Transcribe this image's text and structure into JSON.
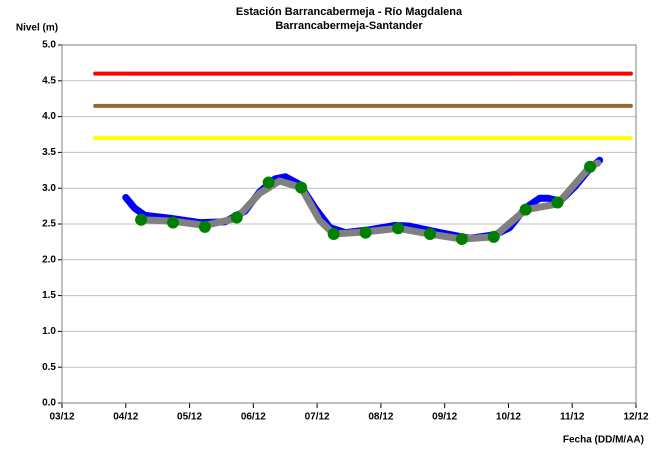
{
  "chart_data": {
    "type": "line",
    "title": "Estación Barrancabermeja - Río Magdalena",
    "subtitle": "Barrancabermeja-Santander",
    "y_label": "Nivel (m)",
    "x_label": "Fecha (DD/M/AA)",
    "xlim": [
      3,
      12
    ],
    "xticks": [
      {
        "value": 3,
        "label": "03/12"
      },
      {
        "value": 4,
        "label": "04/12"
      },
      {
        "value": 5,
        "label": "05/12"
      },
      {
        "value": 6,
        "label": "06/12"
      },
      {
        "value": 7,
        "label": "07/12"
      },
      {
        "value": 8,
        "label": "08/12"
      },
      {
        "value": 9,
        "label": "09/12"
      },
      {
        "value": 10,
        "label": "10/12"
      },
      {
        "value": 11,
        "label": "11/12"
      },
      {
        "value": 12,
        "label": "12/12"
      }
    ],
    "ylim": [
      0,
      5
    ],
    "yticks": [
      {
        "value": 0,
        "label": "0.0"
      },
      0.5,
      {
        "value": 1,
        "label": "1.0"
      },
      1.5,
      {
        "value": 2,
        "label": "2.0"
      },
      2.5,
      {
        "value": 3,
        "label": "3.0"
      },
      3.5,
      {
        "value": 4,
        "label": "4.0"
      },
      4.5,
      {
        "value": 5,
        "label": "5.0"
      }
    ],
    "grid": true,
    "series": [
      {
        "type": "line",
        "color": "#ff0000",
        "x": [
          3.52,
          11.92
        ],
        "values": [
          4.6,
          4.6
        ]
      },
      {
        "type": "line",
        "color": "#996633",
        "x": [
          3.52,
          11.92
        ],
        "values": [
          4.15,
          4.15
        ]
      },
      {
        "type": "line",
        "color": "#ffff00",
        "x": [
          3.52,
          11.92
        ],
        "values": [
          3.7,
          3.7
        ]
      },
      {
        "type": "line",
        "color": "#0000ff",
        "x": [
          4.0,
          4.14,
          4.3,
          4.69,
          5.16,
          5.55,
          5.87,
          6.1,
          6.34,
          6.5,
          6.73,
          6.97,
          7.2,
          7.44,
          7.83,
          8.22,
          8.45,
          8.92,
          9.39,
          9.79,
          10.02,
          10.26,
          10.49,
          10.62,
          10.81,
          11.04,
          11.28,
          11.43
        ],
        "values": [
          2.87,
          2.72,
          2.62,
          2.58,
          2.52,
          2.53,
          2.68,
          2.95,
          3.13,
          3.16,
          3.05,
          2.72,
          2.45,
          2.38,
          2.42,
          2.48,
          2.47,
          2.38,
          2.3,
          2.35,
          2.45,
          2.72,
          2.86,
          2.86,
          2.82,
          3.02,
          3.28,
          3.39
        ]
      },
      {
        "type": "line",
        "color": "#808080",
        "x": [
          4.24,
          4.74,
          5.24,
          5.74,
          6.1,
          6.41,
          6.75,
          7.04,
          7.26,
          7.76,
          8.27,
          8.77,
          9.27,
          9.77,
          10.27,
          10.77,
          11.28,
          11.4
        ],
        "values": [
          2.56,
          2.54,
          2.48,
          2.58,
          2.93,
          3.1,
          3.01,
          2.55,
          2.36,
          2.39,
          2.44,
          2.36,
          2.29,
          2.32,
          2.7,
          2.78,
          3.3,
          3.35
        ]
      },
      {
        "type": "scatter",
        "color": "#008000",
        "x": [
          4.24,
          4.74,
          5.24,
          5.74,
          6.24,
          6.75,
          7.26,
          7.76,
          8.27,
          8.77,
          9.27,
          9.77,
          10.27,
          10.77,
          11.28
        ],
        "values": [
          2.56,
          2.52,
          2.46,
          2.59,
          3.08,
          3.01,
          2.36,
          2.38,
          2.44,
          2.36,
          2.29,
          2.32,
          2.7,
          2.8,
          3.3
        ]
      }
    ]
  }
}
